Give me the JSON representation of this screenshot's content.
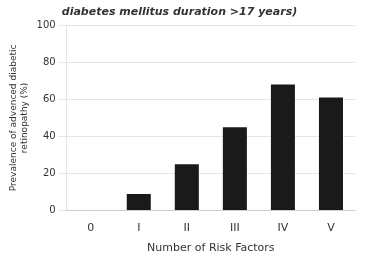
{
  "chart_data": {
    "type": "bar",
    "title": "diabetes mellitus duration >17 years)",
    "categories": [
      "0",
      "I",
      "II",
      "III",
      "IV",
      "V"
    ],
    "values": [
      0,
      9,
      25,
      45,
      68,
      61
    ],
    "color": "#1a1a1a",
    "xlabel": "Number of Risk Factors",
    "ylabel": "Prevalence of advenced diabetic\nretinopathy (%)",
    "ylim": [
      0,
      100
    ],
    "yticks": [
      0,
      20,
      40,
      60,
      80,
      100
    ],
    "grid": true
  }
}
